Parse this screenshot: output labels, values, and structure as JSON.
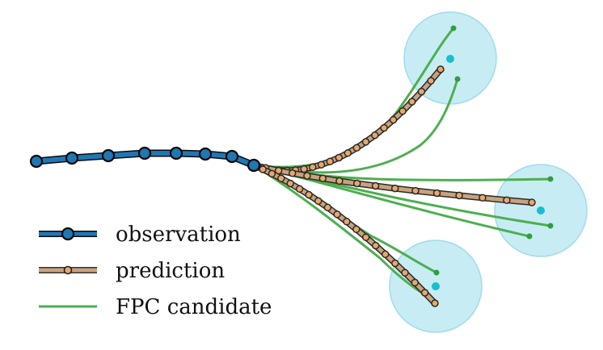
{
  "colors": {
    "observation_fill": "#1f77b4",
    "observation_edge": "#0b0b0b",
    "prediction_fill": "#e8a86b",
    "prediction_band": "#c9a27e",
    "candidate": "#4caf50",
    "goal_circle": "#bfe9f3",
    "goal_circle_edge": "#8fd6ea",
    "goal_dot": "#17becf"
  },
  "legend": {
    "observation": "observation",
    "prediction": "prediction",
    "candidate": "FPC candidate"
  }
}
